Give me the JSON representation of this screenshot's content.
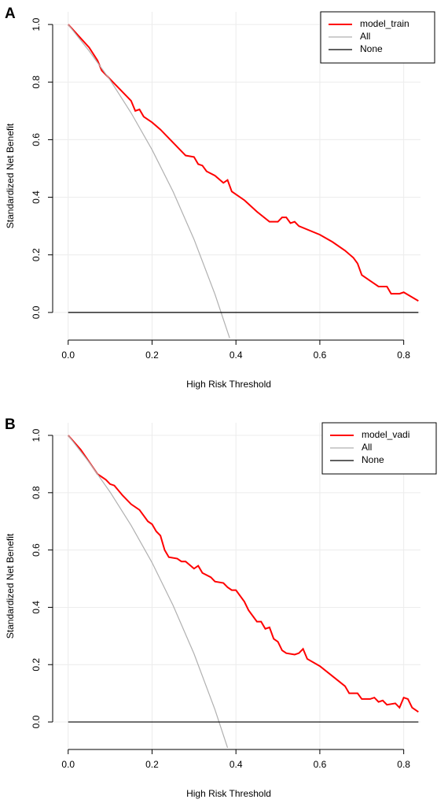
{
  "chart_data": [
    {
      "type": "line",
      "panel_label": "A",
      "xlabel": "High Risk Threshold",
      "ylabel": "Standardized Net Benefit",
      "xlim": [
        -0.037,
        0.84
      ],
      "ylim": [
        -0.096,
        1.044
      ],
      "xticks": [
        {
          "value": 0,
          "label": "0.0"
        },
        0.2,
        0.4,
        0.6,
        0.8
      ],
      "yticks": [
        {
          "value": 0,
          "label": "0.0"
        },
        0.2,
        0.4,
        0.6,
        0.8,
        {
          "value": 1,
          "label": "1.0"
        }
      ],
      "grid": true,
      "legend": "topright",
      "series": [
        {
          "name": "model_train",
          "color": "#ff0000",
          "x": [
            0,
            0.05,
            0.07,
            0.08,
            0.1,
            0.12,
            0.15,
            0.16,
            0.17,
            0.18,
            0.2,
            0.22,
            0.25,
            0.28,
            0.3,
            0.31,
            0.32,
            0.33,
            0.35,
            0.37,
            0.38,
            0.39,
            0.42,
            0.45,
            0.48,
            0.5,
            0.51,
            0.52,
            0.53,
            0.54,
            0.55,
            0.6,
            0.63,
            0.66,
            0.68,
            0.69,
            0.7,
            0.72,
            0.73,
            0.74,
            0.76,
            0.77,
            0.79,
            0.8,
            0.835
          ],
          "values": [
            1.0,
            0.92,
            0.875,
            0.84,
            0.81,
            0.78,
            0.735,
            0.7,
            0.705,
            0.68,
            0.66,
            0.635,
            0.59,
            0.545,
            0.54,
            0.515,
            0.51,
            0.49,
            0.475,
            0.45,
            0.46,
            0.42,
            0.39,
            0.35,
            0.315,
            0.315,
            0.33,
            0.33,
            0.31,
            0.315,
            0.3,
            0.27,
            0.245,
            0.215,
            0.19,
            0.17,
            0.13,
            0.11,
            0.1,
            0.09,
            0.09,
            0.065,
            0.065,
            0.07,
            0.04
          ]
        },
        {
          "name": "All",
          "color": "#b0b0b0",
          "x": [
            0,
            0.05,
            0.1,
            0.15,
            0.2,
            0.25,
            0.3,
            0.35,
            0.385
          ],
          "values": [
            1.0,
            0.908,
            0.807,
            0.693,
            0.565,
            0.42,
            0.254,
            0.063,
            -0.089
          ]
        },
        {
          "name": "None",
          "color": "#000000",
          "x": [
            0,
            0.835
          ],
          "values": [
            0,
            0
          ]
        }
      ]
    },
    {
      "type": "line",
      "panel_label": "B",
      "xlabel": "High Risk Threshold",
      "ylabel": "Standardized Net Benefit",
      "xlim": [
        -0.037,
        0.84
      ],
      "ylim": [
        -0.096,
        1.044
      ],
      "xticks": [
        {
          "value": 0,
          "label": "0.0"
        },
        0.2,
        0.4,
        0.6,
        0.8
      ],
      "yticks": [
        {
          "value": 0,
          "label": "0.0"
        },
        0.2,
        0.4,
        0.6,
        0.8,
        {
          "value": 1,
          "label": "1.0"
        }
      ],
      "grid": true,
      "legend": "topright",
      "series": [
        {
          "name": "model_vadi",
          "color": "#ff0000",
          "x": [
            0,
            0.03,
            0.07,
            0.09,
            0.1,
            0.11,
            0.13,
            0.15,
            0.17,
            0.19,
            0.2,
            0.21,
            0.22,
            0.23,
            0.24,
            0.26,
            0.27,
            0.28,
            0.3,
            0.31,
            0.32,
            0.34,
            0.35,
            0.37,
            0.38,
            0.39,
            0.4,
            0.42,
            0.43,
            0.45,
            0.46,
            0.47,
            0.48,
            0.49,
            0.5,
            0.51,
            0.52,
            0.54,
            0.55,
            0.56,
            0.57,
            0.6,
            0.63,
            0.66,
            0.67,
            0.69,
            0.7,
            0.72,
            0.73,
            0.74,
            0.75,
            0.76,
            0.78,
            0.79,
            0.8,
            0.81,
            0.82,
            0.835
          ],
          "values": [
            1.0,
            0.95,
            0.865,
            0.845,
            0.83,
            0.825,
            0.79,
            0.76,
            0.74,
            0.7,
            0.69,
            0.665,
            0.65,
            0.6,
            0.575,
            0.57,
            0.56,
            0.56,
            0.535,
            0.545,
            0.52,
            0.505,
            0.49,
            0.485,
            0.47,
            0.46,
            0.46,
            0.42,
            0.39,
            0.35,
            0.35,
            0.325,
            0.33,
            0.29,
            0.28,
            0.25,
            0.24,
            0.235,
            0.24,
            0.255,
            0.22,
            0.195,
            0.16,
            0.125,
            0.1,
            0.1,
            0.08,
            0.08,
            0.085,
            0.07,
            0.075,
            0.06,
            0.065,
            0.05,
            0.085,
            0.08,
            0.05,
            0.035
          ]
        },
        {
          "name": "All",
          "color": "#b0b0b0",
          "x": [
            0,
            0.05,
            0.1,
            0.15,
            0.2,
            0.25,
            0.3,
            0.35,
            0.38
          ],
          "values": [
            1.0,
            0.906,
            0.802,
            0.686,
            0.556,
            0.407,
            0.238,
            0.043,
            -0.09
          ]
        },
        {
          "name": "None",
          "color": "#000000",
          "x": [
            0,
            0.835
          ],
          "values": [
            0,
            0
          ]
        }
      ]
    }
  ]
}
